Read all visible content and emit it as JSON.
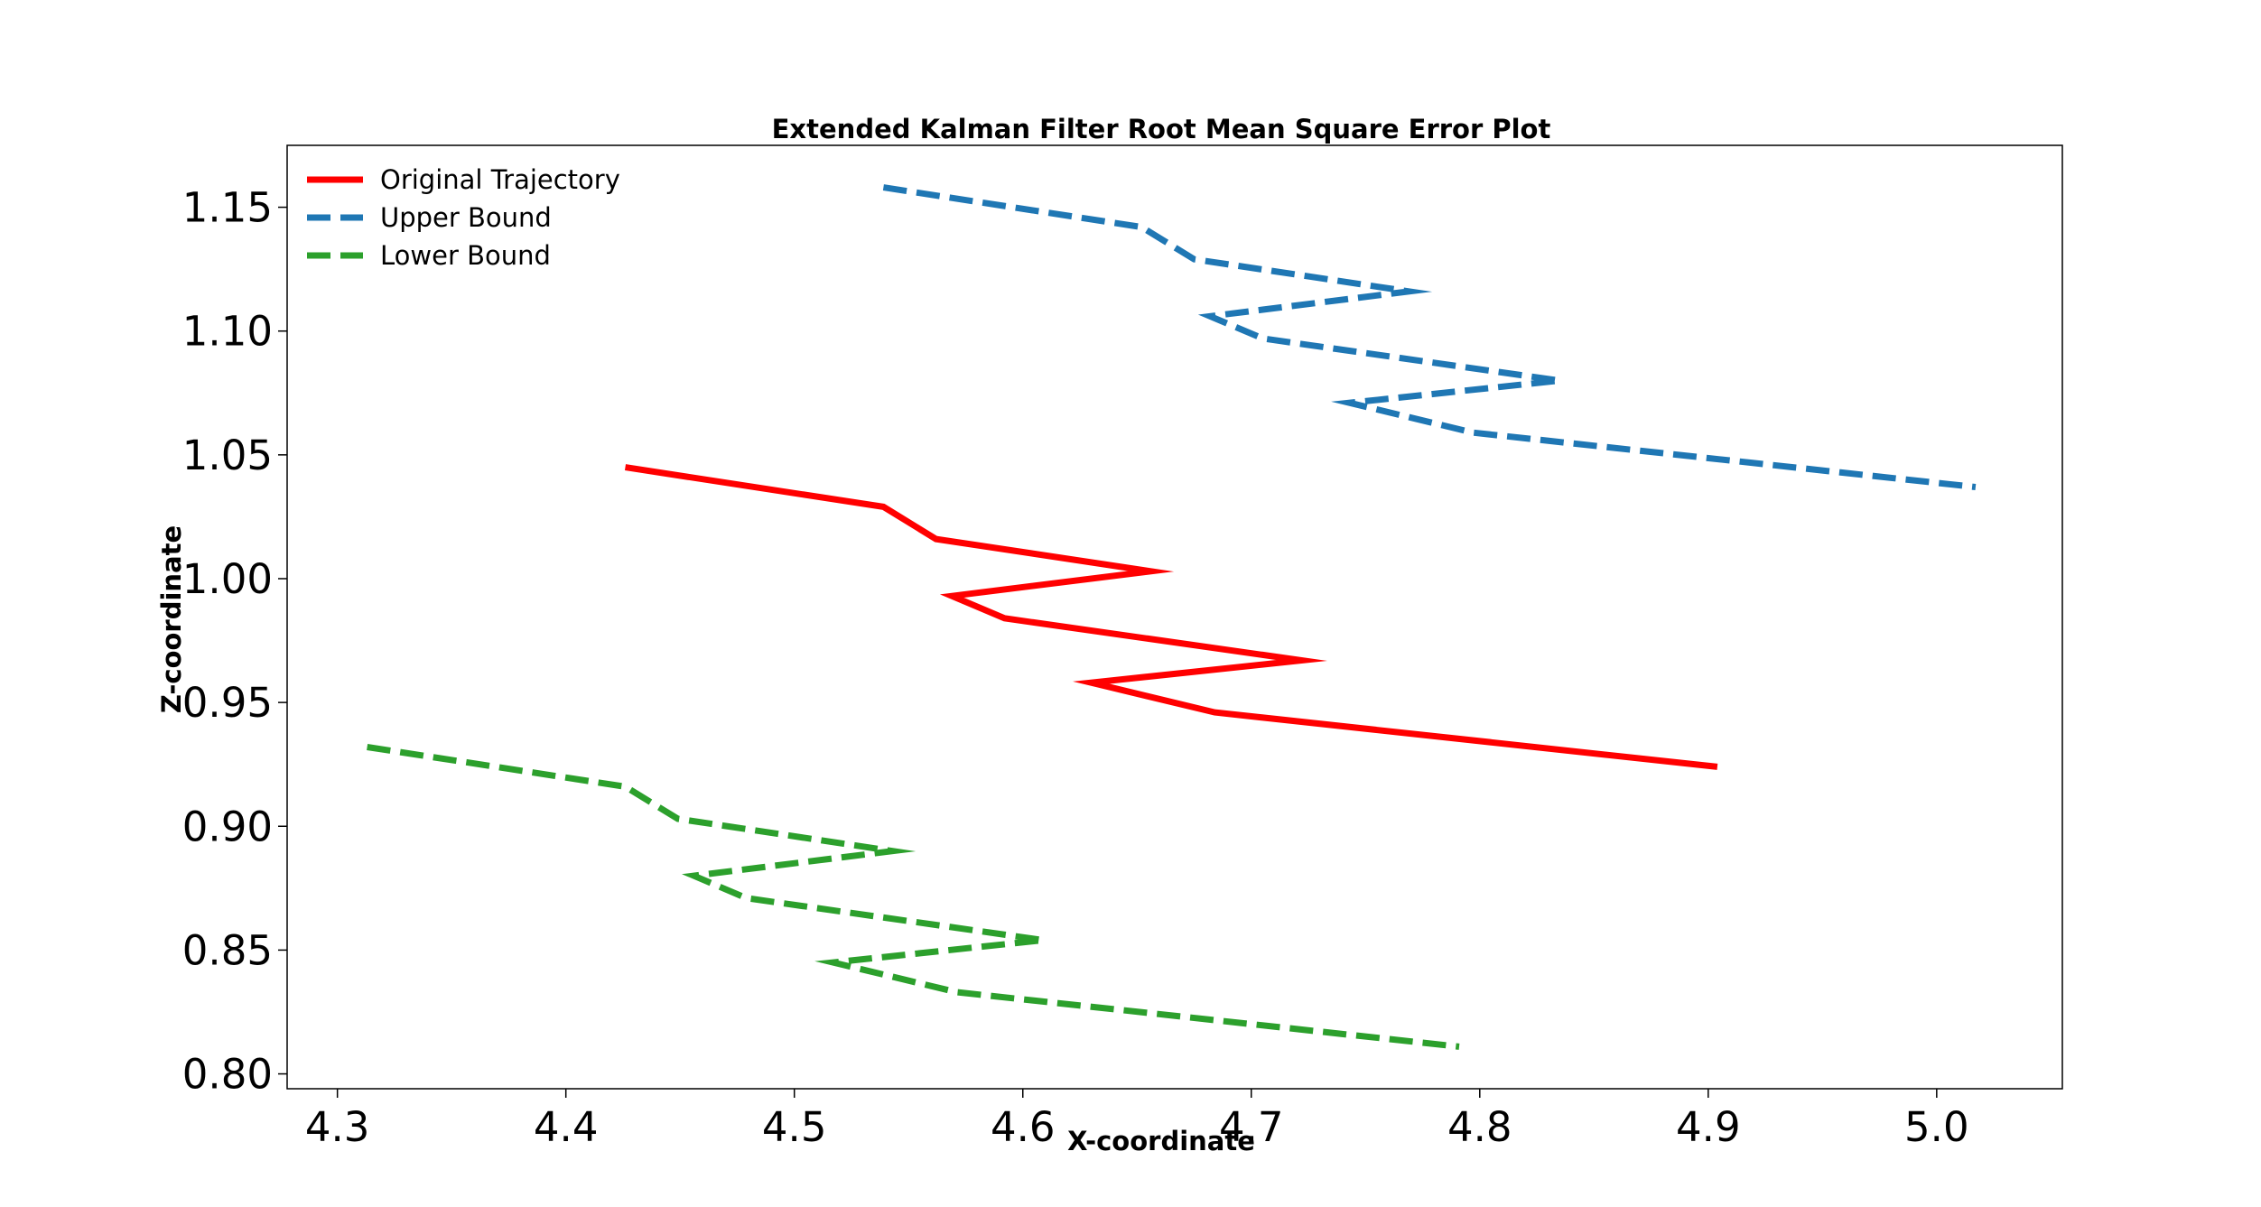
{
  "chart_data": {
    "type": "line",
    "title": "Extended Kalman Filter Root Mean Square Error Plot",
    "xlabel": "X-coordinate",
    "ylabel": "Z-coordinate",
    "xlim": [
      4.278,
      5.055
    ],
    "ylim": [
      0.794,
      1.175
    ],
    "xticks": [
      4.3,
      4.4,
      4.5,
      4.6,
      4.7,
      4.8,
      4.9,
      5.0
    ],
    "xtick_labels": [
      "4.3",
      "4.4",
      "4.5",
      "4.6",
      "4.7",
      "4.8",
      "4.9",
      "5.0"
    ],
    "yticks": [
      0.8,
      0.85,
      0.9,
      0.95,
      1.0,
      1.05,
      1.1,
      1.15
    ],
    "ytick_labels": [
      "0.80",
      "0.85",
      "0.90",
      "0.95",
      "1.00",
      "1.05",
      "1.10",
      "1.15"
    ],
    "grid": false,
    "legend_position": "top-left",
    "series": [
      {
        "name": "Original Trajectory",
        "color": "#ff0000",
        "style": "solid",
        "x": [
          4.426,
          4.539,
          4.562,
          4.656,
          4.569,
          4.592,
          4.722,
          4.63,
          4.684,
          4.904
        ],
        "y": [
          1.045,
          1.029,
          1.016,
          1.003,
          0.993,
          0.984,
          0.967,
          0.958,
          0.946,
          0.924
        ]
      },
      {
        "name": "Upper Bound",
        "color": "#1f77b4",
        "style": "dashed",
        "x": [
          4.539,
          4.652,
          4.675,
          4.769,
          4.682,
          4.705,
          4.835,
          4.743,
          4.797,
          5.017
        ],
        "y": [
          1.158,
          1.142,
          1.129,
          1.116,
          1.106,
          1.097,
          1.08,
          1.071,
          1.059,
          1.037
        ]
      },
      {
        "name": "Lower Bound",
        "color": "#2ca02c",
        "style": "dashed",
        "x": [
          4.313,
          4.426,
          4.449,
          4.543,
          4.456,
          4.479,
          4.609,
          4.517,
          4.571,
          4.791
        ],
        "y": [
          0.932,
          0.916,
          0.903,
          0.89,
          0.88,
          0.871,
          0.854,
          0.845,
          0.833,
          0.811
        ]
      }
    ]
  }
}
